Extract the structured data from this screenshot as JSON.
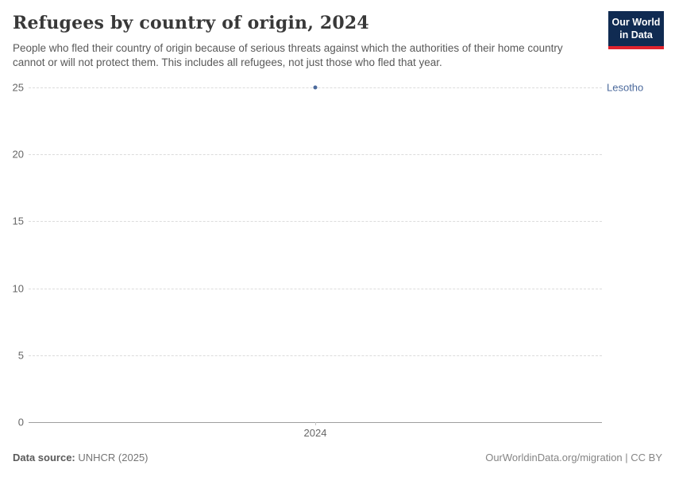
{
  "header": {
    "title": "Refugees by country of origin, 2024",
    "subtitle": "People who fled their country of origin because of serious threats against which the authorities of their home country cannot or will not protect them. This includes all refugees, not just those who fled that year.",
    "logo": {
      "line1": "Our World",
      "line2": "in Data"
    }
  },
  "chart_data": {
    "type": "scatter",
    "title": "Refugees by country of origin, 2024",
    "x": [
      2024
    ],
    "xticklabels": [
      "2024"
    ],
    "series": [
      {
        "name": "Lesotho",
        "values": [
          25
        ],
        "color": "#4c6a9c"
      }
    ],
    "ylim": [
      0,
      25
    ],
    "yticks": [
      0,
      5,
      10,
      15,
      20,
      25
    ],
    "grid": "horizontal-dashed",
    "legend_position": "right-end-of-series"
  },
  "footer": {
    "datasource_label": "Data source:",
    "datasource_value": "UNHCR (2025)",
    "attribution": "OurWorldinData.org/migration | CC BY"
  },
  "colors": {
    "accent_blue": "#4c6a9c",
    "logo_navy": "#102b52",
    "logo_red": "#e0232e",
    "gridline": "#dcdcdc",
    "axis_line": "#9e9e9e",
    "tick_text": "#666666",
    "title_text": "#383838",
    "subtitle_text": "#595959",
    "footer_text": "#757575"
  }
}
